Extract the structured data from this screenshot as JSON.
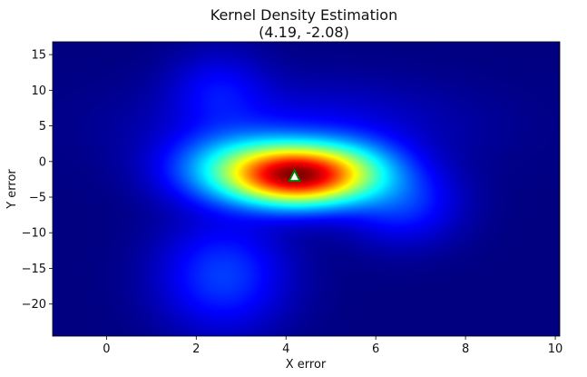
{
  "chart_data": {
    "type": "heatmap",
    "title": "Kernel Density Estimation",
    "subtitle": "(4.19, -2.08)",
    "xlabel": "X error",
    "ylabel": "Y error",
    "xlim": [
      -1.2,
      10.1
    ],
    "ylim": [
      -24.5,
      16.8
    ],
    "xticks": [
      0,
      2,
      4,
      6,
      8,
      10
    ],
    "yticks": [
      15,
      10,
      5,
      0,
      -5,
      -10,
      -15,
      -20
    ],
    "xtick_labels": [
      "0",
      "2",
      "4",
      "6",
      "8",
      "10"
    ],
    "ytick_labels": [
      "15",
      "10",
      "5",
      "0",
      "−5",
      "−10",
      "−15",
      "−20"
    ],
    "colormap": "jet",
    "marker": {
      "x": 4.19,
      "y": -2.08,
      "shape": "triangle",
      "fill": "#ffffff",
      "edge": "#008000"
    },
    "density_components": [
      {
        "x": 4.2,
        "y": -2.0,
        "sx": 0.9,
        "sy": 2.6,
        "w": 1.0
      },
      {
        "x": 3.0,
        "y": -1.0,
        "sx": 1.0,
        "sy": 3.2,
        "w": 0.35
      },
      {
        "x": 5.3,
        "y": -1.5,
        "sx": 0.9,
        "sy": 3.0,
        "w": 0.35
      },
      {
        "x": 2.6,
        "y": -16.0,
        "sx": 0.9,
        "sy": 5.0,
        "w": 0.14
      },
      {
        "x": 2.5,
        "y": 10.0,
        "sx": 0.7,
        "sy": 3.5,
        "w": 0.08
      },
      {
        "x": 6.6,
        "y": -6.0,
        "sx": 0.8,
        "sy": 3.5,
        "w": 0.12
      },
      {
        "x": 4.3,
        "y": 5.0,
        "sx": 2.2,
        "sy": 4.0,
        "w": 0.06
      }
    ]
  }
}
